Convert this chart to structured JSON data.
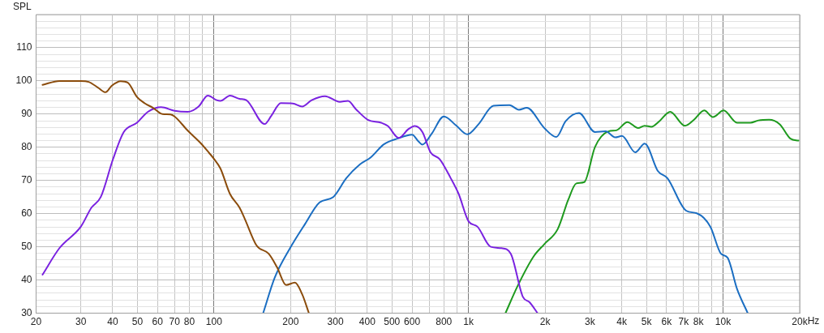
{
  "chart_data": {
    "type": "line",
    "ylabel": "SPL",
    "xlabel": "Hz",
    "log": "x",
    "grid": true,
    "xlim": [
      20,
      20000
    ],
    "ylim": [
      30,
      120
    ],
    "xticks": [
      20,
      30,
      40,
      50,
      60,
      70,
      80,
      {
        "value": 90,
        "label": null
      },
      100,
      200,
      300,
      400,
      500,
      600,
      {
        "value": 700,
        "label": null
      },
      800,
      {
        "value": 900,
        "label": null
      },
      {
        "value": 1000,
        "label": "1k"
      },
      {
        "value": 2000,
        "label": "2k"
      },
      {
        "value": 3000,
        "label": "3k"
      },
      {
        "value": 4000,
        "label": "4k"
      },
      {
        "value": 5000,
        "label": "5k"
      },
      {
        "value": 6000,
        "label": "6k"
      },
      {
        "value": 7000,
        "label": "7k"
      },
      {
        "value": 8000,
        "label": "8k"
      },
      {
        "value": 9000,
        "label": null
      },
      {
        "value": 10000,
        "label": "10k"
      },
      {
        "value": 20000,
        "label": "20k"
      }
    ],
    "yticks": [
      30,
      {
        "value": 32,
        "label": null
      },
      {
        "value": 34,
        "label": null
      },
      {
        "value": 36,
        "label": null
      },
      {
        "value": 38,
        "label": null
      },
      40,
      {
        "value": 42,
        "label": null
      },
      {
        "value": 44,
        "label": null
      },
      {
        "value": 46,
        "label": null
      },
      {
        "value": 48,
        "label": null
      },
      50,
      {
        "value": 52,
        "label": null
      },
      {
        "value": 54,
        "label": null
      },
      {
        "value": 56,
        "label": null
      },
      {
        "value": 58,
        "label": null
      },
      60,
      {
        "value": 62,
        "label": null
      },
      {
        "value": 64,
        "label": null
      },
      {
        "value": 66,
        "label": null
      },
      {
        "value": 68,
        "label": null
      },
      70,
      {
        "value": 72,
        "label": null
      },
      {
        "value": 74,
        "label": null
      },
      {
        "value": 76,
        "label": null
      },
      {
        "value": 78,
        "label": null
      },
      80,
      {
        "value": 82,
        "label": null
      },
      {
        "value": 84,
        "label": null
      },
      {
        "value": 86,
        "label": null
      },
      {
        "value": 88,
        "label": null
      },
      90,
      {
        "value": 92,
        "label": null
      },
      {
        "value": 94,
        "label": null
      },
      {
        "value": 96,
        "label": null
      },
      {
        "value": 98,
        "label": null
      },
      100,
      {
        "value": 102,
        "label": null
      },
      {
        "value": 104,
        "label": null
      },
      {
        "value": 106,
        "label": null
      },
      {
        "value": 108,
        "label": null
      },
      110,
      {
        "value": 112,
        "label": null
      },
      {
        "value": 114,
        "label": null
      },
      {
        "value": 116,
        "label": null
      },
      {
        "value": 118,
        "label": null
      },
      {
        "value": 120,
        "label": null
      }
    ],
    "series": [
      {
        "color": "#8b4c0c",
        "x": [
          21.2,
          24.7,
          30,
          32.2,
          35,
          37.5,
          39.6,
          43,
          45.8,
          49.8,
          53.6,
          57.6,
          62.7,
          67.4,
          70,
          78.9,
          89,
          95.7,
          100,
          106,
          115.6,
          126,
          132,
          147,
          164,
          177,
          192,
          208,
          222,
          236
        ],
        "values": [
          98.8,
          100,
          100,
          99.7,
          98,
          96.6,
          98.5,
          99.9,
          99.5,
          95.2,
          93.2,
          91.9,
          90,
          89.9,
          89.3,
          85,
          81.1,
          78.3,
          76.5,
          73.6,
          65.9,
          61.8,
          58.5,
          50.4,
          47.9,
          43.8,
          38.5,
          39.2,
          35.7,
          30
        ]
      },
      {
        "color": "#7a22e0",
        "x": [
          21.2,
          24.7,
          30,
          33,
          35.9,
          40.1,
          44.2,
          49.8,
          55,
          62,
          70,
          78.9,
          87,
          94.6,
          102.5,
          106,
          115.6,
          126,
          134,
          158,
          168,
          183,
          204,
          222,
          242,
          273,
          312,
          336,
          361,
          402,
          454,
          482,
          532,
          579,
          615,
          659,
          709,
          771,
          851,
          915,
          1000,
          1083,
          1223,
          1346,
          1466,
          1635,
          1737,
          1867
        ],
        "values": [
          41.6,
          49.6,
          56.1,
          61.8,
          65,
          76.4,
          84.6,
          87.4,
          90.7,
          92.1,
          91,
          90.7,
          92.3,
          95.6,
          94.2,
          94,
          95.6,
          94.6,
          94.2,
          87,
          89.5,
          93.3,
          93.2,
          92.3,
          94.2,
          95.4,
          93.7,
          94,
          91.5,
          88.3,
          87.4,
          86.4,
          82.8,
          85.4,
          86.4,
          84.6,
          78.5,
          76.4,
          70.7,
          65.9,
          57.7,
          56.1,
          50,
          49.6,
          47.9,
          34.9,
          33.3,
          30
        ]
      },
      {
        "color": "#1b6ec2",
        "x": [
          156,
          173,
          199,
          228,
          260,
          294,
          331,
          374,
          412,
          465,
          525,
          600,
          637,
          659,
          718,
          800,
          893,
          989,
          1096,
          1253,
          1449,
          1578,
          1694,
          1985,
          2213,
          2410,
          2716,
          3141,
          3459,
          3767,
          4009,
          4521,
          4921,
          5550,
          6044,
          7157,
          7888,
          8911,
          9816,
          10420,
          11350,
          12500
        ],
        "values": [
          30,
          40.6,
          49.6,
          56.9,
          63.4,
          65,
          70.7,
          74.8,
          76.9,
          80.9,
          82.6,
          83.8,
          81.7,
          80.8,
          84.2,
          89.3,
          86.6,
          83.9,
          87,
          92.5,
          92.7,
          91.3,
          91.9,
          85.8,
          83.1,
          87.9,
          90.3,
          84.6,
          84.8,
          83,
          83.4,
          78.5,
          81.1,
          72.8,
          70.7,
          60.9,
          60.1,
          56.1,
          47.9,
          46.7,
          37.3,
          30
        ]
      },
      {
        "color": "#1e9a1e",
        "x": [
          1397,
          1557,
          1802,
          1985,
          2240,
          2466,
          2652,
          2849,
          3141,
          3548,
          3811,
          4209,
          4637,
          4921,
          5228,
          5627,
          6194,
          7082,
          7690,
          8434,
          9118,
          10050,
          11350,
          12800,
          13770,
          15170,
          16710,
          18400,
          19810
        ],
        "values": [
          30,
          38.1,
          47.1,
          50.8,
          55.3,
          64.2,
          69.1,
          69.5,
          80.1,
          84.8,
          85.1,
          87.6,
          85.8,
          86.5,
          86.2,
          87.9,
          90.7,
          86.5,
          88.3,
          91.1,
          89.1,
          91.1,
          87.4,
          87.4,
          88.1,
          88.3,
          86.9,
          82.6,
          82
        ]
      }
    ]
  }
}
